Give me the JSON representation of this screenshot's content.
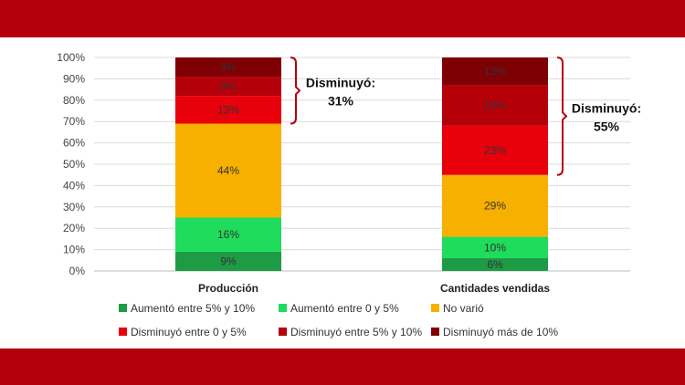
{
  "chart_data": {
    "type": "bar",
    "stacked": true,
    "percent_axis": true,
    "ylim": [
      0,
      100
    ],
    "yticks": [
      "0%",
      "10%",
      "20%",
      "30%",
      "40%",
      "50%",
      "60%",
      "70%",
      "80%",
      "90%",
      "100%"
    ],
    "categories": [
      "Producción",
      "Cantidades vendidas"
    ],
    "series": [
      {
        "name": "Aumentó entre 5% y 10%",
        "color": "#1e9b45",
        "values": [
          9,
          6
        ],
        "labels": [
          "9%",
          "6%"
        ]
      },
      {
        "name": "Aumentó entre 0 y 5%",
        "color": "#1fdc5c",
        "values": [
          16,
          10
        ],
        "labels": [
          "16%",
          "10%"
        ]
      },
      {
        "name": "No varió",
        "color": "#f7b000",
        "values": [
          44,
          29
        ],
        "labels": [
          "44%",
          "29%"
        ]
      },
      {
        "name": "Disminuyó entre 0 y 5%",
        "color": "#e8000b",
        "values": [
          13,
          23
        ],
        "labels": [
          "13%",
          "23%"
        ]
      },
      {
        "name": "Disminuyó entre 5% y 10%",
        "color": "#b5000a",
        "values": [
          9,
          19
        ],
        "labels": [
          "9%",
          "19%"
        ]
      },
      {
        "name": "Disminuyó más de 10%",
        "color": "#7e0005",
        "values": [
          9,
          13
        ],
        "labels": [
          "9%",
          "13%"
        ]
      }
    ],
    "annotations": [
      {
        "category": "Producción",
        "line1": "Disminuyó:",
        "line2": "31%"
      },
      {
        "category": "Cantidades vendidas",
        "line1": "Disminuyó:",
        "line2": "55%"
      }
    ],
    "legend_position": "bottom",
    "grid": true
  }
}
